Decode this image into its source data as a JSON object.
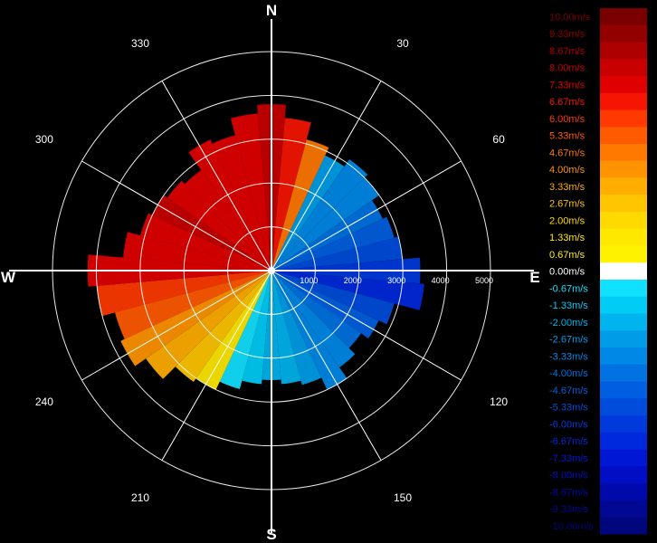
{
  "chart_data": {
    "type": "polar-heatmap",
    "description_label": "",
    "compass": {
      "N": "N",
      "E": "E",
      "S": "S",
      "W": "W"
    },
    "angle_tick_labels": [
      "30",
      "60",
      "120",
      "150",
      "210",
      "240",
      "300",
      "330"
    ],
    "angle_ticks_deg": [
      30,
      60,
      120,
      150,
      210,
      240,
      300,
      330
    ],
    "range_tick_labels": [
      "1000",
      "2000",
      "3000",
      "4000",
      "5000"
    ],
    "range_ticks": [
      1000,
      2000,
      3000,
      4000,
      5000
    ],
    "range_max": 5000,
    "grid": true,
    "legend": {
      "placement": "right",
      "unit": "m/s",
      "entries": [
        {
          "label": "10.00m/s",
          "color": "#7a0000"
        },
        {
          "label": "9.33m/s",
          "color": "#930000"
        },
        {
          "label": "8.67m/s",
          "color": "#ad0000"
        },
        {
          "label": "8.00m/s",
          "color": "#c80000"
        },
        {
          "label": "7.33m/s",
          "color": "#e00000"
        },
        {
          "label": "6.67m/s",
          "color": "#f51500"
        },
        {
          "label": "6.00m/s",
          "color": "#ff3a00"
        },
        {
          "label": "5.33m/s",
          "color": "#ff5a00"
        },
        {
          "label": "4.67m/s",
          "color": "#ff7800"
        },
        {
          "label": "4.00m/s",
          "color": "#ff9400"
        },
        {
          "label": "3.33m/s",
          "color": "#ffae00"
        },
        {
          "label": "2.67m/s",
          "color": "#ffc600"
        },
        {
          "label": "2.00m/s",
          "color": "#ffda00"
        },
        {
          "label": "1.33m/s",
          "color": "#ffe800"
        },
        {
          "label": "0.67m/s",
          "color": "#fff200"
        },
        {
          "label": "0.00m/s",
          "color": "#ffffff"
        },
        {
          "label": "-0.67m/s",
          "color": "#12e0ff"
        },
        {
          "label": "-1.33m/s",
          "color": "#00ccf5"
        },
        {
          "label": "-2.00m/s",
          "color": "#00b4ee"
        },
        {
          "label": "-2.67m/s",
          "color": "#009ce8"
        },
        {
          "label": "-3.33m/s",
          "color": "#0088e6"
        },
        {
          "label": "-4.00m/s",
          "color": "#0072e2"
        },
        {
          "label": "-4.67m/s",
          "color": "#005ee0"
        },
        {
          "label": "-5.33m/s",
          "color": "#004cdc"
        },
        {
          "label": "-6.00m/s",
          "color": "#003adc"
        },
        {
          "label": "-6.67m/s",
          "color": "#0028dc"
        },
        {
          "label": "-7.33m/s",
          "color": "#0018d6"
        },
        {
          "label": "-8.00m/s",
          "color": "#000fc4"
        },
        {
          "label": "-8.67m/s",
          "color": "#000aac"
        },
        {
          "label": "-9.33m/s",
          "color": "#000894"
        },
        {
          "label": "-10.00m/s",
          "color": "#00067c"
        }
      ]
    },
    "velocity_max": 10,
    "sectors": [
      {
        "az": 0,
        "r": 3800,
        "v": 7.8
      },
      {
        "az": 10,
        "r": 3500,
        "v": 6.7
      },
      {
        "az": 20,
        "r": 3100,
        "v": 4.8
      },
      {
        "az": 30,
        "r": 2900,
        "v": -2.5
      },
      {
        "az": 40,
        "r": 3100,
        "v": -3.2
      },
      {
        "az": 50,
        "r": 3000,
        "v": -3.6
      },
      {
        "az": 60,
        "r": 2800,
        "v": -4.2
      },
      {
        "az": 70,
        "r": 2900,
        "v": -4.6
      },
      {
        "az": 80,
        "r": 3000,
        "v": -5.2
      },
      {
        "az": 90,
        "r": 3400,
        "v": -6.0
      },
      {
        "az": 100,
        "r": 3500,
        "v": -6.4
      },
      {
        "az": 110,
        "r": 2900,
        "v": -5.6
      },
      {
        "az": 120,
        "r": 2700,
        "v": -4.8
      },
      {
        "az": 130,
        "r": 2500,
        "v": -4.0
      },
      {
        "az": 140,
        "r": 2700,
        "v": -3.5
      },
      {
        "az": 150,
        "r": 3000,
        "v": -3.0
      },
      {
        "az": 160,
        "r": 2700,
        "v": -2.6
      },
      {
        "az": 170,
        "r": 2600,
        "v": -2.2
      },
      {
        "az": 180,
        "r": 2500,
        "v": -1.8
      },
      {
        "az": 190,
        "r": 2600,
        "v": -1.2
      },
      {
        "az": 200,
        "r": 2800,
        "v": -0.8
      },
      {
        "az": 210,
        "r": 3000,
        "v": 1.6
      },
      {
        "az": 220,
        "r": 3100,
        "v": 2.4
      },
      {
        "az": 230,
        "r": 3500,
        "v": 3.4
      },
      {
        "az": 240,
        "r": 3800,
        "v": 4.2
      },
      {
        "az": 250,
        "r": 3700,
        "v": 5.2
      },
      {
        "az": 260,
        "r": 4000,
        "v": 6.2
      },
      {
        "az": 270,
        "r": 4200,
        "v": 7.3
      },
      {
        "az": 280,
        "r": 3400,
        "v": 7.5
      },
      {
        "az": 290,
        "r": 3100,
        "v": 7.6
      },
      {
        "az": 300,
        "r": 3000,
        "v": 7.8
      },
      {
        "az": 310,
        "r": 2900,
        "v": 7.6
      },
      {
        "az": 320,
        "r": 2800,
        "v": 7.4
      },
      {
        "az": 330,
        "r": 3300,
        "v": 7.6
      },
      {
        "az": 340,
        "r": 3200,
        "v": 7.2
      },
      {
        "az": 350,
        "r": 3600,
        "v": 7.4
      }
    ]
  }
}
